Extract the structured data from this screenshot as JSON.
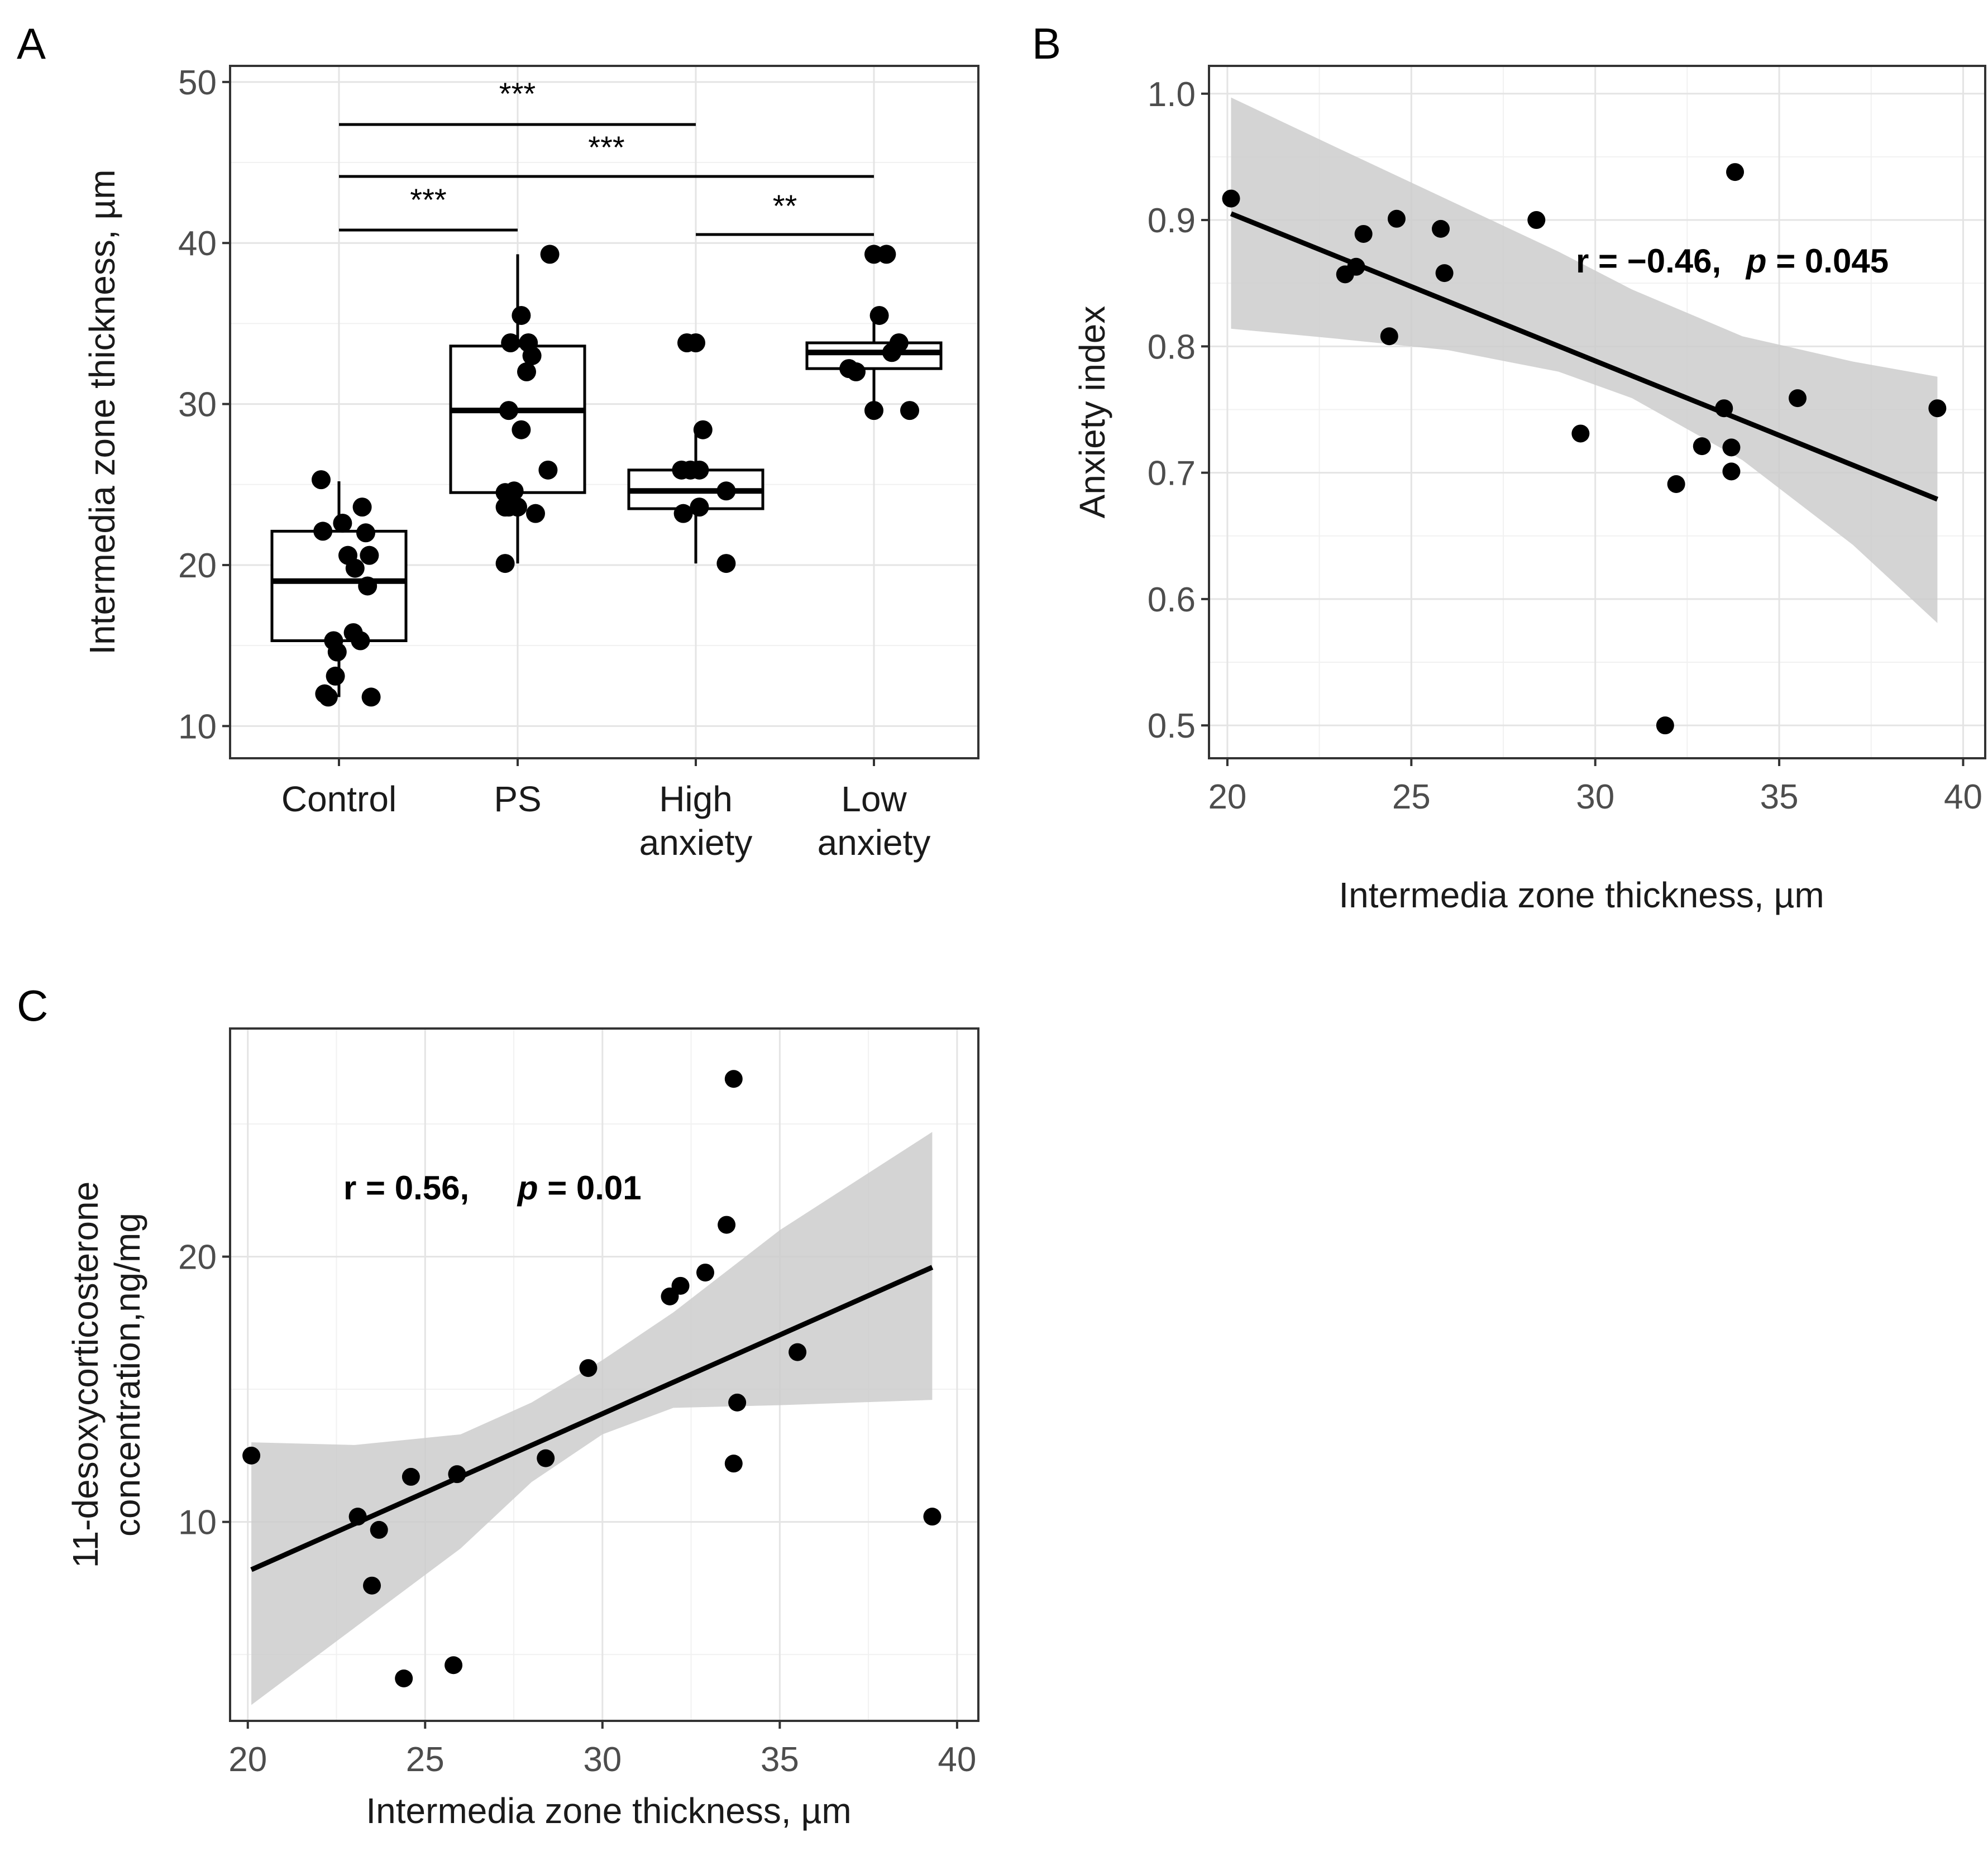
{
  "chart_data": [
    {
      "panel": "A",
      "type": "box",
      "ylabel": "Intermedia zone thickness, µm",
      "xlabel": "",
      "ylim": [
        8,
        51
      ],
      "yticks": [
        10,
        20,
        30,
        40,
        50
      ],
      "categories": [
        "Control",
        "PS",
        "High\nanxiety",
        "Low\nanxiety"
      ],
      "boxes": [
        {
          "q1": 15.3,
          "median": 19.0,
          "q3": 22.1,
          "low": 11.8,
          "high": 25.2
        },
        {
          "q1": 24.5,
          "median": 29.6,
          "q3": 33.6,
          "low": 20.1,
          "high": 39.3
        },
        {
          "q1": 23.5,
          "median": 24.6,
          "q3": 25.9,
          "low": 20.1,
          "high": 28.4
        },
        {
          "q1": 32.2,
          "median": 33.2,
          "q3": 33.8,
          "low": 29.6,
          "high": 35.5
        }
      ],
      "points": [
        [
          [
            -0.1,
            25.3
          ],
          [
            -0.09,
            22.1
          ],
          [
            0.02,
            22.6
          ],
          [
            0.13,
            23.6
          ],
          [
            0.15,
            22.0
          ],
          [
            0.05,
            20.6
          ],
          [
            0.17,
            20.6
          ],
          [
            0.09,
            19.8
          ],
          [
            0.16,
            18.7
          ],
          [
            -0.03,
            15.3
          ],
          [
            0.08,
            15.8
          ],
          [
            0.12,
            15.3
          ],
          [
            -0.01,
            14.6
          ],
          [
            -0.02,
            13.1
          ],
          [
            -0.06,
            11.8
          ],
          [
            0.18,
            11.8
          ],
          [
            -0.08,
            12.0
          ]
        ],
        [
          [
            0.18,
            39.3
          ],
          [
            -0.04,
            33.8
          ],
          [
            0.02,
            35.5
          ],
          [
            0.06,
            33.8
          ],
          [
            0.08,
            33.0
          ],
          [
            0.05,
            32.0
          ],
          [
            -0.05,
            29.6
          ],
          [
            0.02,
            28.4
          ],
          [
            0.17,
            25.9
          ],
          [
            -0.07,
            24.5
          ],
          [
            -0.02,
            24.6
          ],
          [
            -0.05,
            23.6
          ],
          [
            0.0,
            23.6
          ],
          [
            0.1,
            23.2
          ],
          [
            -0.07,
            23.6
          ],
          [
            -0.07,
            20.1
          ]
        ],
        [
          [
            -0.05,
            33.8
          ],
          [
            0.0,
            33.8
          ],
          [
            0.04,
            28.4
          ],
          [
            -0.08,
            25.9
          ],
          [
            -0.03,
            25.9
          ],
          [
            0.02,
            25.9
          ],
          [
            0.17,
            24.6
          ],
          [
            -0.07,
            23.2
          ],
          [
            0.02,
            23.6
          ],
          [
            0.17,
            20.1
          ]
        ],
        [
          [
            0.0,
            39.3
          ],
          [
            0.07,
            39.3
          ],
          [
            0.03,
            35.5
          ],
          [
            0.14,
            33.8
          ],
          [
            0.1,
            33.2
          ],
          [
            -0.14,
            32.2
          ],
          [
            -0.1,
            32.0
          ],
          [
            0.0,
            29.6
          ],
          [
            0.2,
            29.6
          ]
        ]
      ],
      "significance": [
        {
          "from": 0,
          "to": 2,
          "label": "***"
        },
        {
          "from": 0,
          "to": 3,
          "label": "***"
        },
        {
          "from": 0,
          "to": 1,
          "label": "***"
        },
        {
          "from": 2,
          "to": 3,
          "label": "**"
        }
      ]
    },
    {
      "panel": "B",
      "type": "scatter",
      "xlabel": "Intermedia zone thickness, µm",
      "ylabel": "Anxiety index",
      "xlim": [
        19.5,
        40.6
      ],
      "ylim": [
        0.474,
        1.022
      ],
      "xticks": [
        20,
        25,
        30,
        35,
        40
      ],
      "yticks": [
        0.5,
        0.6,
        0.7,
        0.8,
        0.9,
        1.0
      ],
      "ytick_labels": [
        "0.5",
        "0.6",
        "0.7",
        "0.8",
        "0.9",
        "1.0"
      ],
      "points": [
        [
          20.1,
          0.917
        ],
        [
          23.2,
          0.857
        ],
        [
          23.5,
          0.863
        ],
        [
          23.7,
          0.889
        ],
        [
          24.4,
          0.808
        ],
        [
          24.6,
          0.901
        ],
        [
          25.8,
          0.893
        ],
        [
          25.9,
          0.858
        ],
        [
          28.4,
          0.9
        ],
        [
          29.6,
          0.731
        ],
        [
          31.9,
          0.5
        ],
        [
          32.2,
          0.691
        ],
        [
          32.9,
          0.721
        ],
        [
          33.5,
          0.751
        ],
        [
          33.7,
          0.72
        ],
        [
          33.7,
          0.701
        ],
        [
          33.8,
          0.938
        ],
        [
          35.5,
          0.759
        ],
        [
          39.3,
          0.751
        ]
      ],
      "fit": {
        "x": [
          20.1,
          39.3
        ],
        "y": [
          0.905,
          0.679
        ]
      },
      "ci_upper": [
        [
          20.1,
          0.997
        ],
        [
          23,
          0.957
        ],
        [
          26,
          0.916
        ],
        [
          29,
          0.875
        ],
        [
          31,
          0.845
        ],
        [
          34,
          0.808
        ],
        [
          37,
          0.788
        ],
        [
          39.3,
          0.776
        ]
      ],
      "ci_lower": [
        [
          20.1,
          0.814
        ],
        [
          23,
          0.806
        ],
        [
          26,
          0.797
        ],
        [
          29,
          0.78
        ],
        [
          31,
          0.759
        ],
        [
          34,
          0.71
        ],
        [
          37,
          0.643
        ],
        [
          39.3,
          0.581
        ]
      ],
      "annotation": {
        "r": "r = −0.46,",
        "p_symbol": "p",
        "p_value": " = 0.045"
      }
    },
    {
      "panel": "C",
      "type": "scatter",
      "xlabel": "Intermedia zone thickness, µm",
      "ylabel_line1": "11-desoxycorticosterone",
      "ylabel_line2": "concentration,ng/mg",
      "xlim": [
        19.5,
        40.6
      ],
      "ylim": [
        2.5,
        28.6
      ],
      "xticks": [
        20,
        25,
        30,
        35,
        40
      ],
      "yticks": [
        10,
        20
      ],
      "ytick_labels": [
        "10",
        "20"
      ],
      "points": [
        [
          20.1,
          12.5
        ],
        [
          23.1,
          10.2
        ],
        [
          23.5,
          7.6
        ],
        [
          23.7,
          9.7
        ],
        [
          24.4,
          4.1
        ],
        [
          24.6,
          11.7
        ],
        [
          25.8,
          4.6
        ],
        [
          25.9,
          11.8
        ],
        [
          28.4,
          12.4
        ],
        [
          29.6,
          15.8
        ],
        [
          31.9,
          18.5
        ],
        [
          32.2,
          18.9
        ],
        [
          32.9,
          19.4
        ],
        [
          33.5,
          21.2
        ],
        [
          33.7,
          12.2
        ],
        [
          33.8,
          14.5
        ],
        [
          33.7,
          26.7
        ],
        [
          35.5,
          16.4
        ],
        [
          39.3,
          10.2
        ]
      ],
      "fit": {
        "x": [
          20.1,
          39.3
        ],
        "y": [
          8.2,
          19.6
        ]
      },
      "ci_upper": [
        [
          20.1,
          13.0
        ],
        [
          23,
          12.9
        ],
        [
          26,
          13.3
        ],
        [
          28,
          14.5
        ],
        [
          30,
          16.1
        ],
        [
          32,
          17.9
        ],
        [
          35,
          21.0
        ],
        [
          39.3,
          24.7
        ]
      ],
      "ci_lower": [
        [
          20.1,
          3.1
        ],
        [
          23,
          6.0
        ],
        [
          26,
          9.0
        ],
        [
          28,
          11.5
        ],
        [
          30,
          13.3
        ],
        [
          32,
          14.3
        ],
        [
          35,
          14.4
        ],
        [
          39.3,
          14.6
        ]
      ],
      "annotation": {
        "r": "r = 0.56,",
        "p_symbol": "p",
        "p_value": " = 0.01"
      }
    }
  ]
}
